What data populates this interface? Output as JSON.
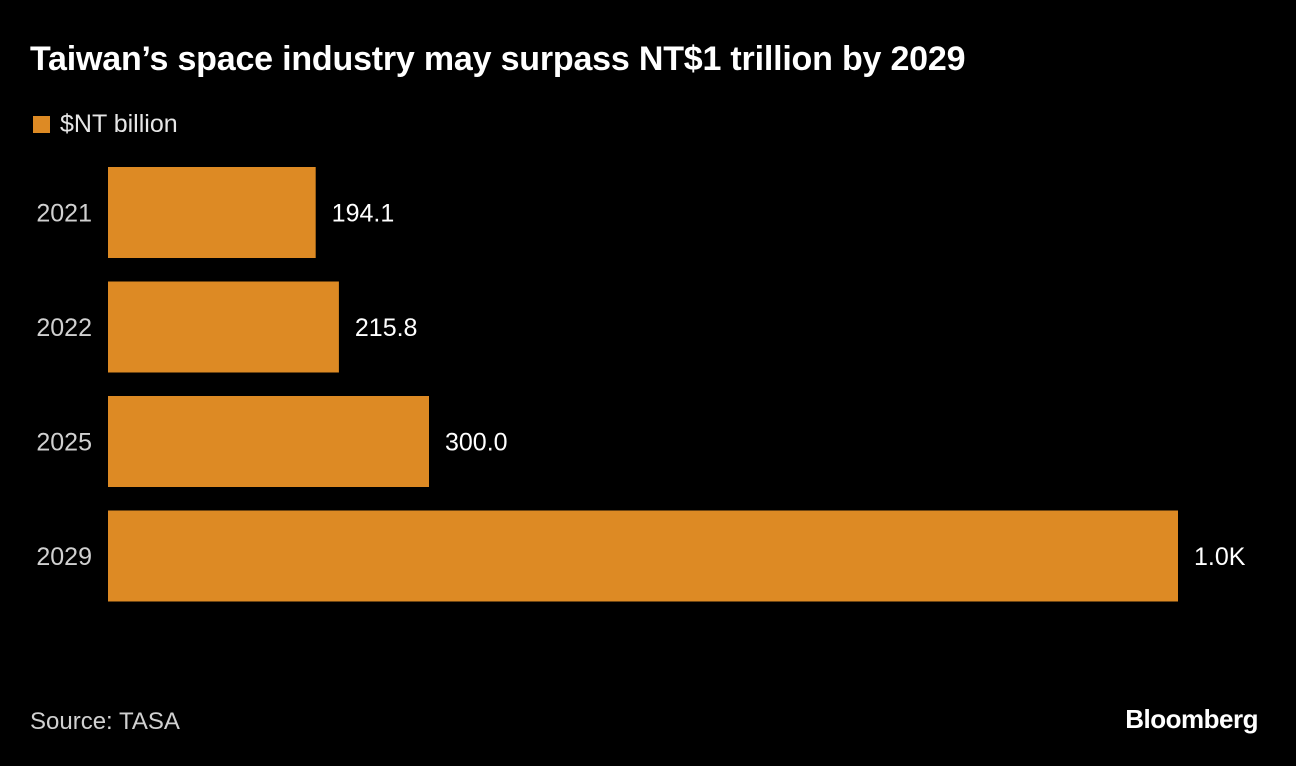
{
  "chart_data": {
    "type": "bar",
    "orientation": "horizontal",
    "title": "Taiwan’s space industry may surpass NT$1 trillion by 2029",
    "categories": [
      "2021",
      "2022",
      "2025",
      "2029"
    ],
    "series": [
      {
        "name": "$NT billion",
        "values": [
          194.1,
          215.8,
          300.0,
          1000
        ],
        "labels": [
          "194.1",
          "215.8",
          "300.0",
          "1.0K"
        ],
        "color": "#DD8A24"
      }
    ],
    "xlim": [
      0,
      1000
    ],
    "xlabel": "",
    "ylabel": "",
    "grid": false,
    "legend_position": "top-left"
  },
  "footer": {
    "source": "Source: TASA",
    "brand": "Bloomberg"
  },
  "colors": {
    "background": "#000000",
    "text": "#FFFFFF",
    "muted_text": "#D0D0D0",
    "bar": "#DD8A24"
  }
}
